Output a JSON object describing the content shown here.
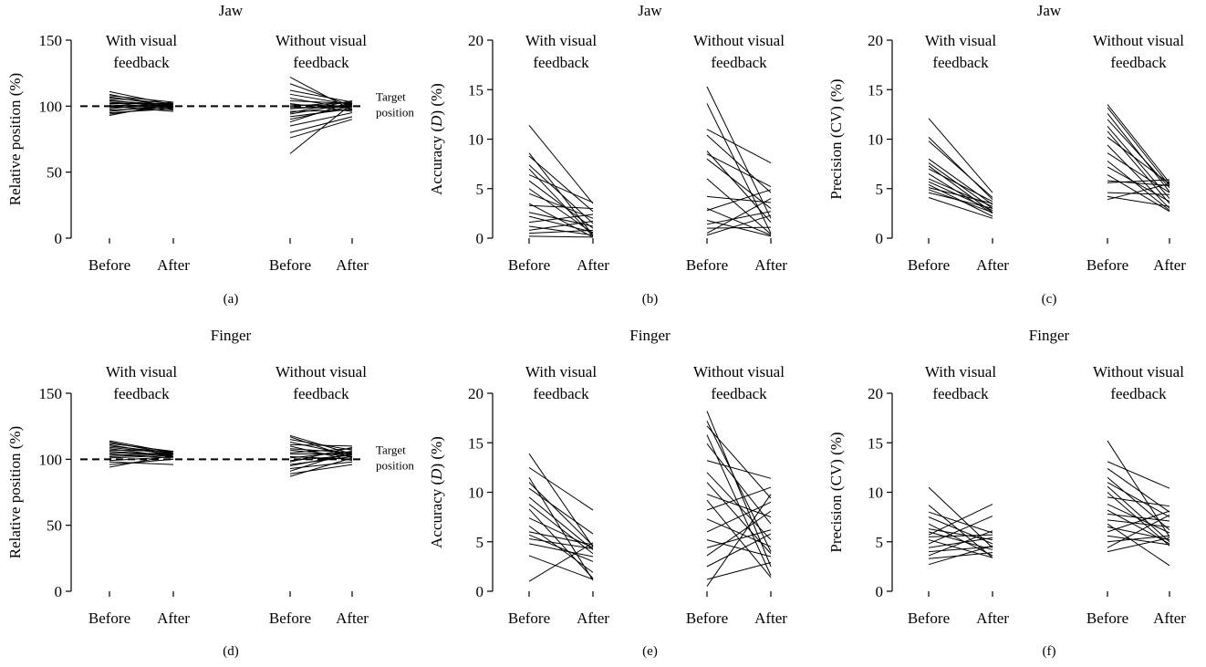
{
  "colors": {
    "line": "#000000",
    "background": "#ffffff"
  },
  "chart_data": [
    {
      "type": "line",
      "panel_label": "(a)",
      "title": "Jaw",
      "ylabel": "Relative position (%)",
      "ylim": [
        0,
        150
      ],
      "yticks": [
        0,
        50,
        100,
        150
      ],
      "group_labels": [
        [
          "With visual",
          "feedback"
        ],
        [
          "Without visual",
          "feedback"
        ]
      ],
      "x_labels": [
        "Before",
        "After",
        "Before",
        "After"
      ],
      "reference_line": {
        "y": 100,
        "label": [
          "Target",
          "position"
        ]
      },
      "series": [
        {
          "group": "With visual feedback",
          "pairs": [
            [
              111,
              101
            ],
            [
              109,
              99
            ],
            [
              108,
              103
            ],
            [
              107,
              100
            ],
            [
              106,
              102
            ],
            [
              105,
              98
            ],
            [
              104,
              101
            ],
            [
              103,
              100
            ],
            [
              103,
              97
            ],
            [
              102,
              102
            ],
            [
              101,
              99
            ],
            [
              100,
              101
            ],
            [
              100,
              96
            ],
            [
              99,
              100
            ],
            [
              98,
              103
            ],
            [
              97,
              99
            ],
            [
              96,
              101
            ],
            [
              95,
              98
            ],
            [
              94,
              100
            ],
            [
              93,
              102
            ]
          ]
        },
        {
          "group": "Without visual feedback",
          "pairs": [
            [
              122,
              97
            ],
            [
              117,
              100
            ],
            [
              112,
              103
            ],
            [
              109,
              101
            ],
            [
              106,
              98
            ],
            [
              104,
              102
            ],
            [
              102,
              96
            ],
            [
              101,
              100
            ],
            [
              100,
              103
            ],
            [
              99,
              99
            ],
            [
              98,
              101
            ],
            [
              96,
              97
            ],
            [
              95,
              104
            ],
            [
              94,
              102
            ],
            [
              92,
              98
            ],
            [
              90,
              100
            ],
            [
              88,
              103
            ],
            [
              85,
              95
            ],
            [
              80,
              92
            ],
            [
              76,
              90
            ],
            [
              64,
              102
            ]
          ]
        }
      ]
    },
    {
      "type": "line",
      "panel_label": "(b)",
      "title": "Jaw",
      "ylabel": "Accuracy (D) (%)",
      "ylim": [
        0,
        20
      ],
      "yticks": [
        0,
        5,
        10,
        15,
        20
      ],
      "group_labels": [
        [
          "With visual",
          "feedback"
        ],
        [
          "Without visual",
          "feedback"
        ]
      ],
      "x_labels": [
        "Before",
        "After",
        "Before",
        "After"
      ],
      "series": [
        {
          "group": "With visual feedback",
          "pairs": [
            [
              11.4,
              3.5
            ],
            [
              8.6,
              0.3
            ],
            [
              8.3,
              2.7
            ],
            [
              7.4,
              1.5
            ],
            [
              7.0,
              0.2
            ],
            [
              6.4,
              3.6
            ],
            [
              5.8,
              1.0
            ],
            [
              5.0,
              0.5
            ],
            [
              4.5,
              2.0
            ],
            [
              3.5,
              0.1
            ],
            [
              3.3,
              3.0
            ],
            [
              2.6,
              1.2
            ],
            [
              2.2,
              0.6
            ],
            [
              1.6,
              2.4
            ],
            [
              1.2,
              0.3
            ],
            [
              0.8,
              1.7
            ],
            [
              0.5,
              0.8
            ],
            [
              0.2,
              0.1
            ]
          ]
        },
        {
          "group": "Without visual feedback",
          "pairs": [
            [
              15.3,
              2.0
            ],
            [
              13.6,
              0.5
            ],
            [
              11.0,
              7.6
            ],
            [
              10.4,
              4.6
            ],
            [
              8.8,
              1.6
            ],
            [
              8.5,
              5.2
            ],
            [
              8.0,
              3.0
            ],
            [
              6.0,
              0.4
            ],
            [
              4.2,
              3.6
            ],
            [
              3.0,
              0.3
            ],
            [
              2.8,
              4.9
            ],
            [
              1.8,
              0.2
            ],
            [
              1.4,
              2.7
            ],
            [
              1.0,
              1.1
            ],
            [
              0.5,
              4.0
            ],
            [
              0.3,
              2.3
            ]
          ]
        }
      ]
    },
    {
      "type": "line",
      "panel_label": "(c)",
      "title": "Jaw",
      "ylabel": "Precision (CV) (%)",
      "ylim": [
        0,
        20
      ],
      "yticks": [
        0,
        5,
        10,
        15,
        20
      ],
      "group_labels": [
        [
          "With visual",
          "feedback"
        ],
        [
          "Without visual",
          "feedback"
        ]
      ],
      "x_labels": [
        "Before",
        "After",
        "Before",
        "After"
      ],
      "series": [
        {
          "group": "With visual feedback",
          "pairs": [
            [
              12.1,
              4.6
            ],
            [
              10.2,
              3.9
            ],
            [
              9.8,
              4.1
            ],
            [
              8.0,
              3.4
            ],
            [
              7.6,
              3.0
            ],
            [
              7.3,
              2.6
            ],
            [
              7.0,
              3.7
            ],
            [
              6.5,
              2.5
            ],
            [
              6.0,
              3.2
            ],
            [
              5.7,
              2.8
            ],
            [
              5.4,
              2.2
            ],
            [
              5.1,
              3.5
            ],
            [
              4.9,
              2.6
            ],
            [
              4.6,
              3.0
            ],
            [
              4.1,
              2.0
            ]
          ]
        },
        {
          "group": "Without visual feedback",
          "pairs": [
            [
              13.5,
              5.6
            ],
            [
              13.2,
              5.3
            ],
            [
              12.6,
              4.7
            ],
            [
              12.0,
              5.1
            ],
            [
              11.3,
              4.0
            ],
            [
              10.8,
              3.5
            ],
            [
              10.2,
              5.5
            ],
            [
              9.4,
              3.0
            ],
            [
              8.6,
              4.6
            ],
            [
              7.8,
              2.8
            ],
            [
              7.2,
              3.7
            ],
            [
              6.4,
              2.7
            ],
            [
              5.8,
              5.3
            ],
            [
              5.6,
              5.9
            ],
            [
              4.6,
              4.4
            ],
            [
              3.9,
              5.5
            ],
            [
              4.2,
              3.2
            ]
          ]
        }
      ]
    },
    {
      "type": "line",
      "panel_label": "(d)",
      "title": "Finger",
      "ylabel": "Relative position (%)",
      "ylim": [
        0,
        150
      ],
      "yticks": [
        0,
        50,
        100,
        150
      ],
      "group_labels": [
        [
          "With visual",
          "feedback"
        ],
        [
          "Without visual",
          "feedback"
        ]
      ],
      "x_labels": [
        "Before",
        "After",
        "Before",
        "After"
      ],
      "reference_line": {
        "y": 100,
        "label": [
          "Target",
          "position"
        ]
      },
      "series": [
        {
          "group": "With visual feedback",
          "pairs": [
            [
              114,
              105
            ],
            [
              113,
              104
            ],
            [
              112,
              106
            ],
            [
              111,
              103
            ],
            [
              110,
              105
            ],
            [
              109,
              104
            ],
            [
              108,
              102
            ],
            [
              107,
              106
            ],
            [
              106,
              103
            ],
            [
              105,
              104
            ],
            [
              104,
              101
            ],
            [
              103,
              105
            ],
            [
              102,
              104
            ],
            [
              101,
              103
            ],
            [
              99,
              102
            ],
            [
              98,
              96
            ],
            [
              96,
              100
            ],
            [
              94,
              103
            ]
          ]
        },
        {
          "group": "Without visual feedback",
          "pairs": [
            [
              118,
              104
            ],
            [
              117,
              101
            ],
            [
              115,
              107
            ],
            [
              113,
              103
            ],
            [
              111,
              110
            ],
            [
              110,
              99
            ],
            [
              108,
              105
            ],
            [
              107,
              102
            ],
            [
              105,
              108
            ],
            [
              104,
              104
            ],
            [
              102,
              100
            ],
            [
              101,
              106
            ],
            [
              99,
              103
            ],
            [
              98,
              109
            ],
            [
              96,
              102
            ],
            [
              95,
              104
            ],
            [
              93,
              98
            ],
            [
              91,
              106
            ],
            [
              89,
              96
            ],
            [
              87,
              101
            ]
          ]
        }
      ]
    },
    {
      "type": "line",
      "panel_label": "(e)",
      "title": "Finger",
      "ylabel": "Accuracy (D) (%)",
      "ylim": [
        0,
        20
      ],
      "yticks": [
        0,
        5,
        10,
        15,
        20
      ],
      "group_labels": [
        [
          "With visual",
          "feedback"
        ],
        [
          "Without visual",
          "feedback"
        ]
      ],
      "x_labels": [
        "Before",
        "After",
        "Before",
        "After"
      ],
      "series": [
        {
          "group": "With visual feedback",
          "pairs": [
            [
              13.9,
              4.5
            ],
            [
              12.5,
              8.2
            ],
            [
              11.5,
              1.1
            ],
            [
              11.0,
              4.6
            ],
            [
              10.4,
              5.8
            ],
            [
              9.5,
              4.2
            ],
            [
              8.8,
              3.8
            ],
            [
              8.3,
              1.3
            ],
            [
              7.4,
              4.4
            ],
            [
              6.6,
              1.9
            ],
            [
              6.0,
              4.7
            ],
            [
              5.7,
              3.0
            ],
            [
              5.3,
              4.3
            ],
            [
              4.8,
              3.5
            ],
            [
              3.6,
              1.2
            ],
            [
              1.0,
              4.9
            ]
          ]
        },
        {
          "group": "Without visual feedback",
          "pairs": [
            [
              18.2,
              2.5
            ],
            [
              17.2,
              4.0
            ],
            [
              16.7,
              9.4
            ],
            [
              15.8,
              1.6
            ],
            [
              14.9,
              6.8
            ],
            [
              13.2,
              11.4
            ],
            [
              12.0,
              5.2
            ],
            [
              11.0,
              3.8
            ],
            [
              9.8,
              7.5
            ],
            [
              9.2,
              1.4
            ],
            [
              8.2,
              10.5
            ],
            [
              7.3,
              4.5
            ],
            [
              6.0,
              9.0
            ],
            [
              5.2,
              3.5
            ],
            [
              4.4,
              6.2
            ],
            [
              3.6,
              8.1
            ],
            [
              2.5,
              5.8
            ],
            [
              1.2,
              2.9
            ],
            [
              0.5,
              9.8
            ]
          ]
        }
      ]
    },
    {
      "type": "line",
      "panel_label": "(f)",
      "title": "Finger",
      "ylabel": "Precision (CV) (%)",
      "ylim": [
        0,
        20
      ],
      "yticks": [
        0,
        5,
        10,
        15,
        20
      ],
      "group_labels": [
        [
          "With visual",
          "feedback"
        ],
        [
          "Without visual",
          "feedback"
        ]
      ],
      "x_labels": [
        "Before",
        "After",
        "Before",
        "After"
      ],
      "series": [
        {
          "group": "With visual feedback",
          "pairs": [
            [
              10.5,
              4.4
            ],
            [
              8.7,
              3.4
            ],
            [
              8.0,
              5.9
            ],
            [
              7.5,
              4.8
            ],
            [
              6.8,
              3.6
            ],
            [
              6.3,
              5.2
            ],
            [
              6.0,
              4.2
            ],
            [
              5.7,
              8.8
            ],
            [
              5.5,
              5.7
            ],
            [
              5.2,
              3.4
            ],
            [
              4.8,
              7.6
            ],
            [
              4.4,
              5.4
            ],
            [
              4.0,
              4.5
            ],
            [
              3.6,
              6.1
            ],
            [
              3.3,
              3.9
            ],
            [
              2.7,
              4.6
            ]
          ]
        },
        {
          "group": "Without visual feedback",
          "pairs": [
            [
              15.2,
              5.5
            ],
            [
              13.1,
              10.4
            ],
            [
              12.4,
              8.0
            ],
            [
              11.5,
              6.2
            ],
            [
              11.0,
              7.5
            ],
            [
              10.6,
              5.0
            ],
            [
              10.0,
              4.6
            ],
            [
              9.5,
              8.6
            ],
            [
              8.8,
              5.9
            ],
            [
              8.2,
              4.8
            ],
            [
              7.8,
              7.1
            ],
            [
              7.2,
              6.5
            ],
            [
              6.8,
              2.6
            ],
            [
              6.5,
              5.2
            ],
            [
              6.0,
              8.1
            ],
            [
              5.6,
              4.7
            ],
            [
              5.0,
              5.6
            ],
            [
              4.4,
              7.7
            ],
            [
              4.0,
              5.4
            ]
          ]
        }
      ]
    }
  ]
}
